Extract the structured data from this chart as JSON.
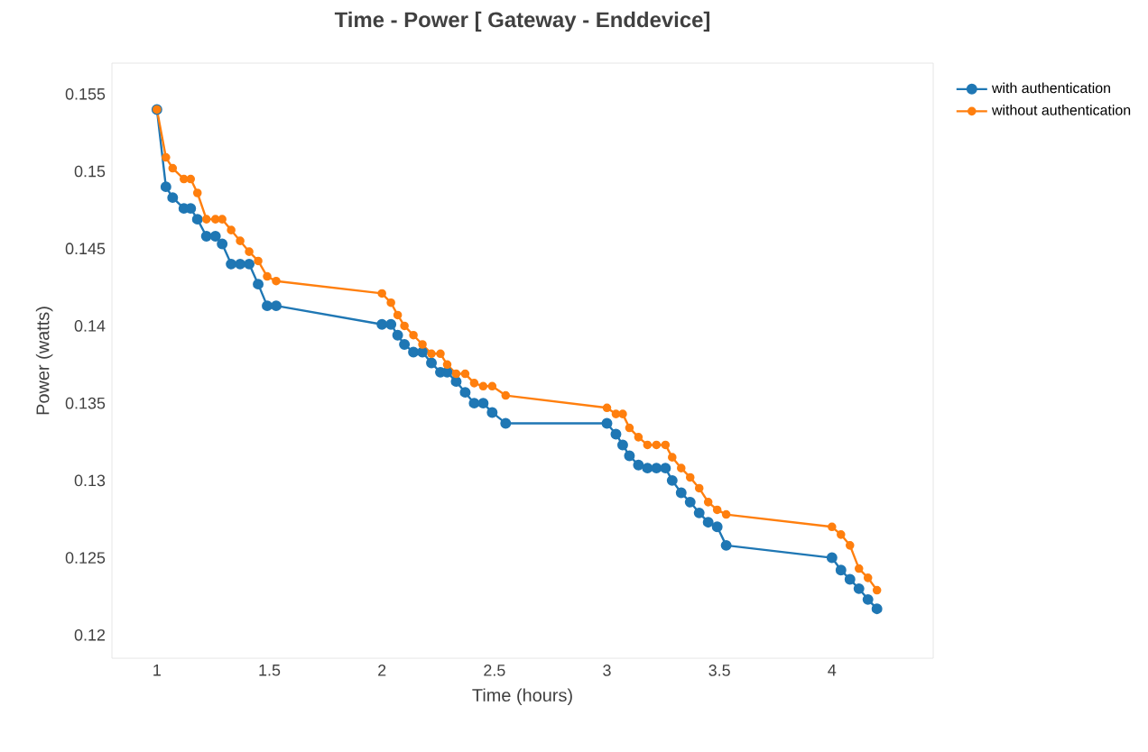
{
  "chart_data": {
    "type": "line",
    "title": "Time -  Power [ Gateway -  Enddevice]",
    "xlabel": "Time (hours)",
    "ylabel": "Power (watts)",
    "xlim": [
      0.8,
      4.45
    ],
    "ylim": [
      0.1185,
      0.157
    ],
    "xticks": [
      1,
      1.5,
      2,
      2.5,
      3,
      3.5,
      4
    ],
    "yticks": [
      {
        "value": 0.12,
        "label": "0.12"
      },
      {
        "value": 0.125,
        "label": "0.125"
      },
      {
        "value": 0.13,
        "label": "0.13"
      },
      {
        "value": 0.135,
        "label": "0.135"
      },
      {
        "value": 0.14,
        "label": "0.14"
      },
      {
        "value": 0.145,
        "label": "0.145"
      },
      {
        "value": 0.15,
        "label": "0.15"
      },
      {
        "value": 0.155,
        "label": "0.155"
      }
    ],
    "legend": "top right",
    "marker": "circle",
    "line_style": "solid",
    "x": [
      1,
      1.04,
      1.07,
      1.12,
      1.15,
      1.18,
      1.22,
      1.26,
      1.29,
      1.33,
      1.37,
      1.41,
      1.45,
      1.49,
      1.53,
      2,
      2.04,
      2.07,
      2.1,
      2.14,
      2.18,
      2.22,
      2.26,
      2.29,
      2.33,
      2.37,
      2.41,
      2.45,
      2.49,
      2.55,
      3,
      3.04,
      3.07,
      3.1,
      3.14,
      3.18,
      3.22,
      3.26,
      3.29,
      3.33,
      3.37,
      3.41,
      3.45,
      3.49,
      3.53,
      4,
      4.04,
      4.08,
      4.12,
      4.16,
      4.2
    ],
    "series": [
      {
        "name": "with authentication",
        "color": "#1f77b4",
        "values": [
          0.154,
          0.149,
          0.1483,
          0.1476,
          0.1476,
          0.1469,
          0.1458,
          0.1458,
          0.1453,
          0.144,
          0.144,
          0.144,
          0.1427,
          0.1413,
          0.1413,
          0.1401,
          0.1401,
          0.1394,
          0.1388,
          0.1383,
          0.1383,
          0.1376,
          0.137,
          0.137,
          0.1364,
          0.1357,
          0.135,
          0.135,
          0.1344,
          0.1337,
          0.1337,
          0.133,
          0.1323,
          0.1316,
          0.131,
          0.1308,
          0.1308,
          0.1308,
          0.13,
          0.1292,
          0.1286,
          0.1279,
          0.1273,
          0.127,
          0.1258,
          0.125,
          0.1242,
          0.1236,
          0.123,
          0.1223,
          0.1217
        ]
      },
      {
        "name": "without authentication",
        "color": "#ff7f0e",
        "values": [
          0.154,
          0.1509,
          0.1502,
          0.1495,
          0.1495,
          0.1486,
          0.1469,
          0.1469,
          0.1469,
          0.1462,
          0.1455,
          0.1448,
          0.1442,
          0.1432,
          0.1429,
          0.1421,
          0.1415,
          0.1407,
          0.14,
          0.1394,
          0.1388,
          0.1382,
          0.1382,
          0.1375,
          0.1369,
          0.1369,
          0.1363,
          0.1361,
          0.1361,
          0.1355,
          0.1347,
          0.1343,
          0.1343,
          0.1334,
          0.1328,
          0.1323,
          0.1323,
          0.1323,
          0.1315,
          0.1308,
          0.1302,
          0.1295,
          0.1286,
          0.1281,
          0.1278,
          0.127,
          0.1265,
          0.1258,
          0.1243,
          0.1237,
          0.1229
        ]
      }
    ]
  }
}
